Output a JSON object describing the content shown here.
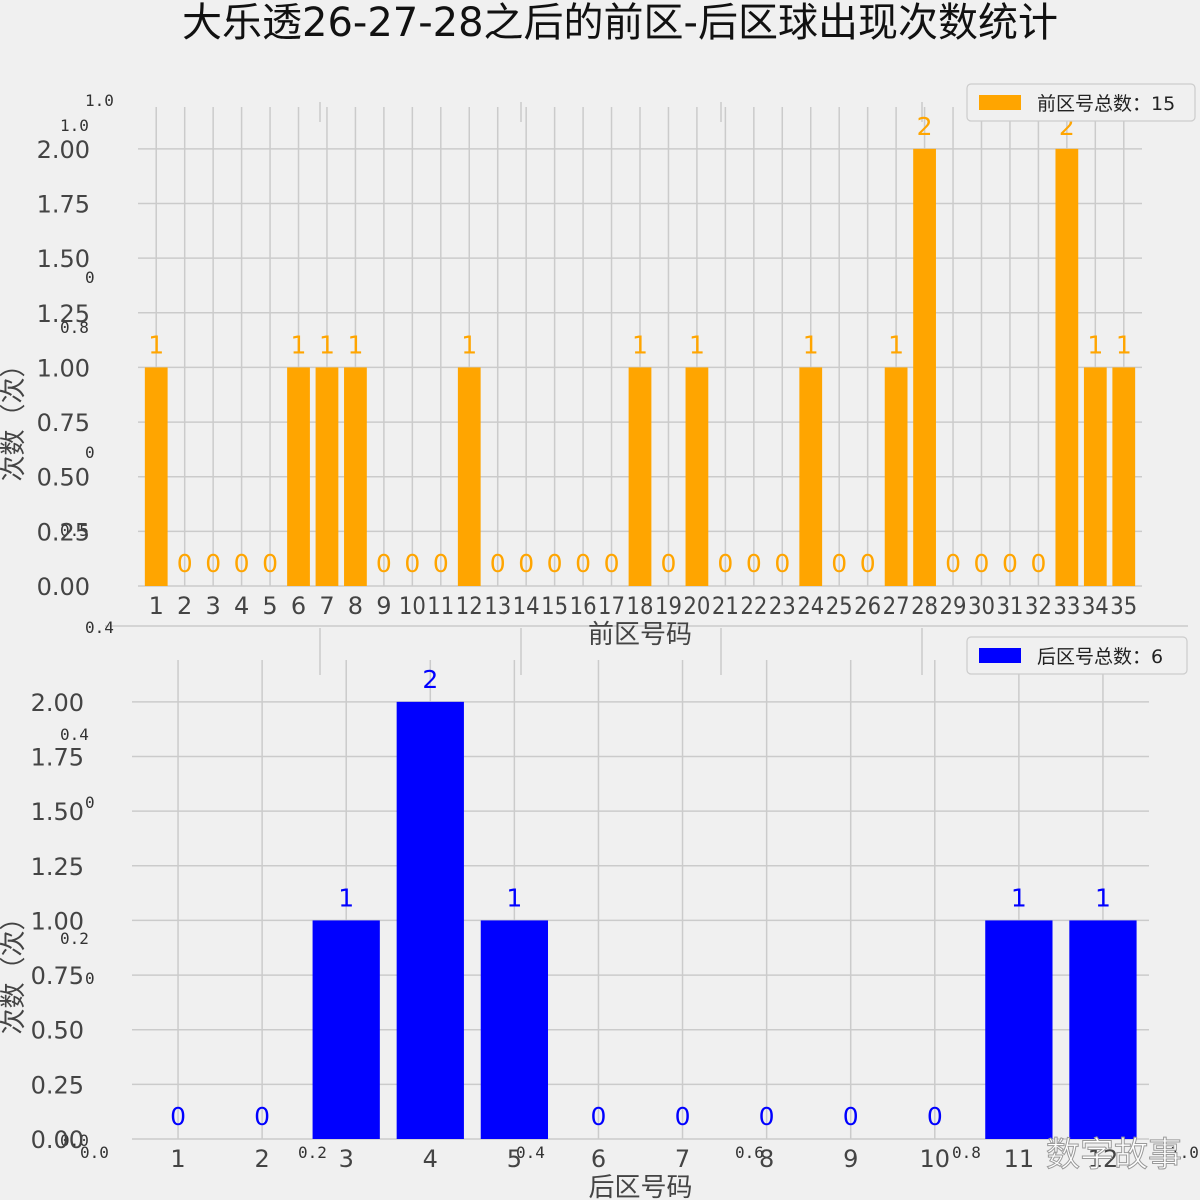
{
  "title": "大乐透26-27-28之后的前区-后区球出现次数统计",
  "watermark": "数字故事",
  "ghost_labels": {
    "background_ticks_top": [
      "1.0",
      "1.0",
      "0",
      "0.8",
      "0",
      "0.5"
    ],
    "background_ticks_mid": [
      "0.4",
      "0.4",
      "0",
      "0.2",
      "0"
    ],
    "background_ticks_bottom": [
      "0.0",
      "0.0",
      "0.2",
      "0.4",
      "0.6",
      "0.8",
      "1.0"
    ]
  },
  "chart_data": [
    {
      "type": "bar",
      "color": "#FFA500",
      "categories": [
        "1",
        "2",
        "3",
        "4",
        "5",
        "6",
        "7",
        "8",
        "9",
        "10",
        "11",
        "12",
        "13",
        "14",
        "15",
        "16",
        "17",
        "18",
        "19",
        "20",
        "21",
        "22",
        "23",
        "24",
        "25",
        "26",
        "27",
        "28",
        "29",
        "30",
        "31",
        "32",
        "33",
        "34",
        "35"
      ],
      "values": [
        1,
        0,
        0,
        0,
        0,
        1,
        1,
        1,
        0,
        0,
        0,
        1,
        0,
        0,
        0,
        0,
        0,
        1,
        0,
        1,
        0,
        0,
        0,
        1,
        0,
        0,
        1,
        2,
        0,
        0,
        0,
        0,
        2,
        1,
        1
      ],
      "data_labels": [
        "1",
        "0",
        "0",
        "0",
        "0",
        "1",
        "1",
        "1",
        "0",
        "0",
        "0",
        "1",
        "0",
        "0",
        "0",
        "0",
        "0",
        "1",
        "0",
        "1",
        "0",
        "0",
        "0",
        "1",
        "0",
        "0",
        "1",
        "2",
        "0",
        "0",
        "0",
        "0",
        "2",
        "1",
        "1"
      ],
      "xlabel": "前区号码",
      "ylabel": "次数（次）",
      "ylim": [
        0,
        2.1
      ],
      "yticks": [
        "0.00",
        "0.25",
        "0.50",
        "0.75",
        "1.00",
        "1.25",
        "1.50",
        "1.75",
        "2.00"
      ],
      "grid": true,
      "legend": {
        "label": "前区号总数：15",
        "placement": "top-right"
      }
    },
    {
      "type": "bar",
      "color": "#0000FF",
      "categories": [
        "1",
        "2",
        "3",
        "4",
        "5",
        "6",
        "7",
        "8",
        "9",
        "10",
        "11",
        "12"
      ],
      "values": [
        0,
        0,
        1,
        2,
        1,
        0,
        0,
        0,
        0,
        0,
        1,
        1
      ],
      "data_labels": [
        "0",
        "0",
        "1",
        "2",
        "1",
        "0",
        "0",
        "0",
        "0",
        "0",
        "1",
        "1"
      ],
      "xlabel": "后区号码",
      "ylabel": "次数（次）",
      "ylim": [
        0,
        2.1
      ],
      "yticks": [
        "0.00",
        "0.25",
        "0.50",
        "0.75",
        "1.00",
        "1.25",
        "1.50",
        "1.75",
        "2.00"
      ],
      "grid": true,
      "legend": {
        "label": "后区号总数：6",
        "placement": "top-right"
      }
    }
  ]
}
